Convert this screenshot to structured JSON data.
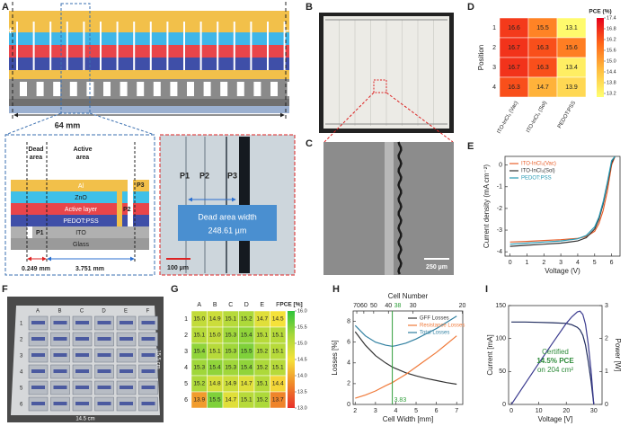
{
  "figure": {
    "panel_labels": [
      "A",
      "B",
      "C",
      "D",
      "E",
      "F",
      "G",
      "H",
      "I"
    ]
  },
  "panel_a": {
    "terminals": [
      "+",
      "−"
    ],
    "width": "64 mm",
    "dead_area": [
      "Dead",
      "area"
    ],
    "active_area": [
      "Active",
      "area"
    ],
    "layers": [
      "Al",
      "ZnO",
      "Active layer",
      "PEDOT:PSS",
      "ITO",
      "Glass"
    ],
    "scribes": [
      "P1",
      "P2",
      "P3"
    ],
    "dead_width": "0.249 mm",
    "active_width": "3.751 mm",
    "micrograph": {
      "scribes": [
        "P1",
        "P2",
        "P3"
      ],
      "caption": [
        "Dead area width",
        "248.61 µm"
      ],
      "scale": "100 µm"
    }
  },
  "panel_c": {
    "scale": "250 µm"
  },
  "panel_f": {
    "columns": [
      "A",
      "B",
      "C",
      "D",
      "E",
      "F"
    ],
    "rows": [
      "1",
      "2",
      "3",
      "4",
      "5",
      "6"
    ],
    "width": "14.5 cm",
    "height": "15.5 cm"
  },
  "chart_data": [
    {
      "type": "heatmap",
      "ylabel": "Position",
      "rows": [
        "1",
        "2",
        "3",
        "4"
      ],
      "columns": [
        "ITO-InCl₃ (Vac)",
        "ITO-InCl₃ (Sol)",
        "PEDOT:PSS"
      ],
      "values": [
        [
          16.6,
          15.5,
          13.1
        ],
        [
          16.7,
          16.3,
          15.6
        ],
        [
          16.7,
          16.3,
          13.4
        ],
        [
          16.3,
          14.7,
          13.9
        ]
      ],
      "colorbar_label": "PCE (%)",
      "zlim": [
        13.0,
        17.4
      ],
      "zticks": [
        17.4,
        16.8,
        16.2,
        15.6,
        {
          "value": 15,
          "label": "15.0"
        },
        14.4,
        13.8,
        13.2
      ],
      "colormap": [
        "#ffff70",
        "#ffc040",
        "#ff6a1a",
        "#e6001c"
      ]
    },
    {
      "type": "line",
      "xlabel": "Voltage (V)",
      "ylabel": "Current density (mA cm⁻²)",
      "x": [
        0,
        1,
        2,
        3,
        4,
        4.5,
        5,
        5.25,
        5.5,
        5.75,
        6,
        6.2
      ],
      "series": [
        {
          "name": "ITO-InCl₃(Vac)",
          "color": "#e8602c",
          "values": [
            -3.55,
            -3.52,
            -3.48,
            -3.44,
            -3.38,
            -3.3,
            -3.05,
            -2.7,
            -2.1,
            -1.2,
            0,
            0.4
          ]
        },
        {
          "name": "ITO-InCl₃(Sol)",
          "color": "#333333",
          "values": [
            -3.75,
            -3.7,
            -3.65,
            -3.6,
            -3.5,
            -3.35,
            -2.95,
            -2.5,
            -1.8,
            -0.9,
            0.1,
            0.4
          ]
        },
        {
          "name": "PEDOT:PSS",
          "color": "#2a9bb5",
          "values": [
            -3.65,
            -3.6,
            -3.55,
            -3.5,
            -3.4,
            -3.25,
            -2.85,
            -2.4,
            -1.7,
            -0.8,
            0.2,
            0.4
          ]
        }
      ],
      "xlim": [
        -0.3,
        6.5
      ],
      "xticks": [
        0,
        1,
        2,
        3,
        4,
        5,
        6
      ],
      "ylim": [
        -4.2,
        0.4
      ],
      "yticks": [
        -4,
        -3,
        -2,
        -1,
        0
      ],
      "legend": "upper left"
    },
    {
      "type": "heatmap",
      "rows": [
        "1",
        "2",
        "3",
        "4",
        "5",
        "6"
      ],
      "columns": [
        "A",
        "B",
        "C",
        "D",
        "E",
        "F"
      ],
      "values": [
        [
          15,
          14.9,
          15.1,
          15.2,
          14.7,
          14.5
        ],
        [
          15.1,
          15,
          15.3,
          15.4,
          15.1,
          15.1
        ],
        [
          15.4,
          15.1,
          15.3,
          15.5,
          15.2,
          15.1
        ],
        [
          15.3,
          15.4,
          15.3,
          15.4,
          15.2,
          15.1
        ],
        [
          15.2,
          14.8,
          14.9,
          14.7,
          15.1,
          14.4
        ],
        [
          13.9,
          15.5,
          14.7,
          15.1,
          15.2,
          13.7
        ]
      ],
      "value_labels": [
        [
          "15.0",
          "14.9",
          "15.1",
          "15.2",
          "14.7",
          "14.5"
        ],
        [
          "15.1",
          "15.0",
          "15.3",
          "15.4",
          "15.1",
          "15.1"
        ],
        [
          "15.4",
          "15.1",
          "15.3",
          "15.5",
          "15.2",
          "15.1"
        ],
        [
          "15.3",
          "15.4",
          "15.3",
          "15.4",
          "15.2",
          "15.1"
        ],
        [
          "15.2",
          "14.8",
          "14.9",
          "14.7",
          "15.1",
          "14.4"
        ],
        [
          "13.9",
          "15.5",
          "14.7",
          "15.1",
          "15.2",
          "13.7"
        ]
      ],
      "colorbar_label": "PCE [%]",
      "zlim": [
        13,
        16
      ],
      "zticks": [
        {
          "value": 16,
          "label": "16.0"
        },
        15.5,
        {
          "value": 15,
          "label": "15.0"
        },
        14.5,
        {
          "value": 14,
          "label": "14.0"
        },
        13.5,
        {
          "value": 13,
          "label": "13.0"
        }
      ],
      "colormap": [
        "#e8302a",
        "#f08a2a",
        "#f5e23a",
        "#a8d83a",
        "#2ec43a"
      ]
    },
    {
      "type": "line",
      "xlabel": "Cell Width [mm]",
      "ylabel": "Losses [%]",
      "x2label": "Cell Number",
      "x": [
        2,
        2.5,
        3,
        3.5,
        3.83,
        4,
        4.5,
        5,
        5.5,
        6,
        6.5,
        7
      ],
      "series": [
        {
          "name": "GFF Losses",
          "color": "#333333",
          "values": [
            7.0,
            5.7,
            4.7,
            4.0,
            3.6,
            3.45,
            3.05,
            2.75,
            2.5,
            2.3,
            2.1,
            1.95
          ]
        },
        {
          "name": "Resistance Losses",
          "color": "#f07a3a",
          "values": [
            0.6,
            0.9,
            1.3,
            1.8,
            2.1,
            2.3,
            2.9,
            3.6,
            4.3,
            5.0,
            5.8,
            6.6
          ]
        },
        {
          "name": "Total Losses",
          "color": "#2f7fa0",
          "values": [
            7.6,
            6.6,
            6.0,
            5.7,
            5.6,
            5.65,
            5.9,
            6.3,
            6.8,
            7.3,
            7.9,
            8.5
          ]
        }
      ],
      "xlim": [
        1.9,
        7.3
      ],
      "xticks": [
        2,
        3,
        4,
        5,
        6,
        7
      ],
      "ylim": [
        0,
        9
      ],
      "yticks": [
        0,
        2,
        4,
        6,
        8
      ],
      "x2ticks": [
        70,
        60,
        50,
        40,
        30,
        20
      ],
      "marker": {
        "x": 3.83,
        "cells": 38,
        "color": "#2e9e3a"
      },
      "legend": "upper right"
    },
    {
      "type": "line",
      "xlabel": "Voltage [V]",
      "ylabel": "Current [mA]",
      "y2label": "Power [W]",
      "x": [
        0,
        5,
        10,
        15,
        20,
        22,
        24,
        25,
        26,
        27,
        28,
        29,
        30
      ],
      "series": [
        {
          "name": "Current",
          "color": "#1f2b5e",
          "values": [
            125,
            125,
            124.5,
            124,
            123,
            121,
            117,
            113,
            105,
            90,
            65,
            35,
            0
          ]
        },
        {
          "name": "Power",
          "color": "#3b3b8f",
          "axis": "y2",
          "values": [
            0,
            0.63,
            1.25,
            1.86,
            2.46,
            2.66,
            2.81,
            2.83,
            2.73,
            2.43,
            1.82,
            1.02,
            0
          ]
        }
      ],
      "xlim": [
        -1,
        33
      ],
      "xticks": [
        0,
        10,
        20,
        30
      ],
      "ylim": [
        0,
        150
      ],
      "yticks": [
        0,
        50,
        100,
        150
      ],
      "y2lim": [
        0,
        3
      ],
      "y2ticks": [
        0,
        1,
        2,
        3
      ],
      "annotations": [
        "Certified",
        "14.5% PCE",
        "on 204 cm²"
      ],
      "annotation_color": "#2e8b3a"
    }
  ]
}
